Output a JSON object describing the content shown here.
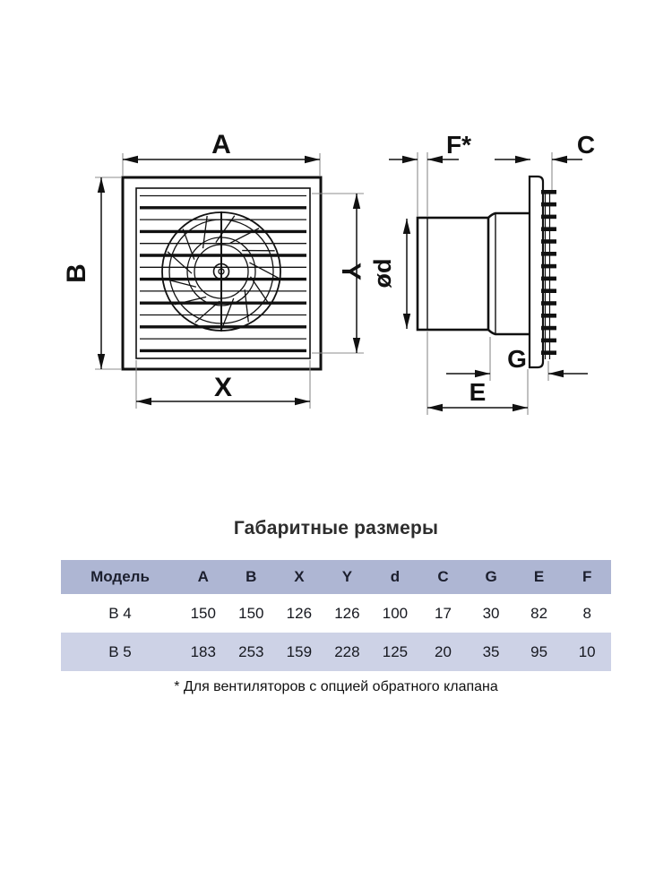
{
  "drawing": {
    "labels": {
      "a": "A",
      "b": "B",
      "x": "X",
      "y": "Y",
      "f": "F*",
      "c": "C",
      "d": "ød",
      "g": "G",
      "e": "E"
    }
  },
  "section": {
    "title": "Габаритные размеры",
    "table": {
      "headers": [
        "Модель",
        "A",
        "B",
        "X",
        "Y",
        "d",
        "C",
        "G",
        "E",
        "F"
      ],
      "rows": [
        {
          "model": "В 4",
          "values": [
            "150",
            "150",
            "126",
            "126",
            "100",
            "17",
            "30",
            "82",
            "8"
          ]
        },
        {
          "model": "В 5",
          "values": [
            "183",
            "253",
            "159",
            "228",
            "125",
            "20",
            "35",
            "95",
            "10"
          ]
        }
      ]
    },
    "footnote": "* Для вентиляторов с опцией обратного клапана"
  },
  "colors": {
    "line": "#111111",
    "extension_line": "#8d8d8d",
    "table_header_bg": "#aeb6d3",
    "table_alt_row_bg": "#cdd2e6",
    "background": "#ffffff"
  }
}
